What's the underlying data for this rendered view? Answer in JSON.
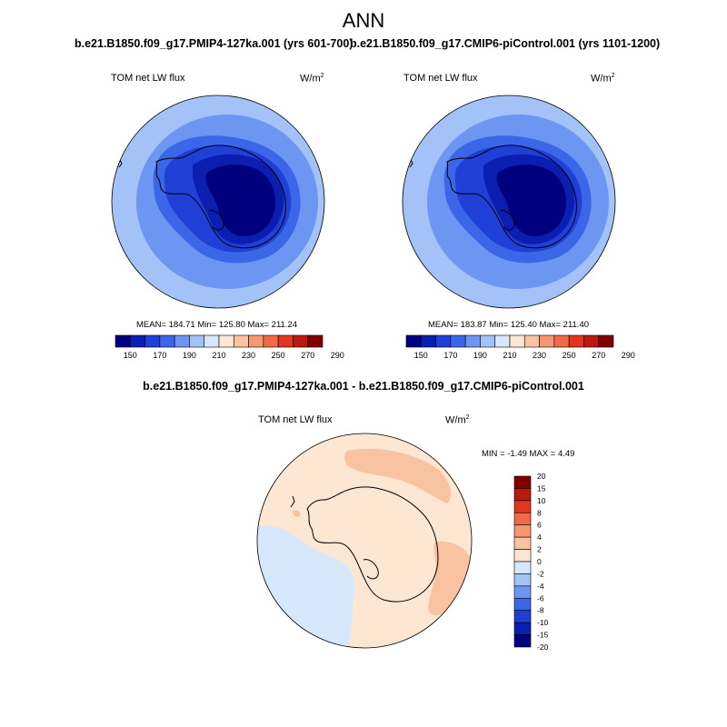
{
  "title": "ANN",
  "panels": [
    {
      "case": "b.e21.B1850.f09_g17.PMIP4-127ka.001 (yrs 601-700)",
      "variable": "TOM net LW flux",
      "units_base": "W/m",
      "units_exp": "2",
      "mean": "184.71",
      "min": "125.80",
      "max": "211.24",
      "stats_text": "MEAN= 184.71  Min= 125.80  Max= 211.24"
    },
    {
      "case": "b.e21.B1850.f09_g17.CMIP6-piControl.001 (yrs 1101-1200)",
      "variable": "TOM net LW flux",
      "units_base": "W/m",
      "units_exp": "2",
      "mean": "183.87",
      "min": "125.40",
      "max": "211.40",
      "stats_text": "MEAN= 183.87  Min= 125.40  Max= 211.40"
    }
  ],
  "diff": {
    "title": "b.e21.B1850.f09_g17.PMIP4-127ka.001 - b.e21.B1850.f09_g17.CMIP6-piControl.001",
    "variable": "TOM net LW flux",
    "units_base": "W/m",
    "units_exp": "2",
    "min": "-1.49",
    "max": "4.49",
    "stats_text": "MIN =  -1.49 MAX =   4.49"
  },
  "colorbar_main": {
    "colors": [
      "#00007f",
      "#0a1fb0",
      "#1f3fd6",
      "#3c66e8",
      "#6d95f2",
      "#a3c2f8",
      "#d8e8fc",
      "#fde6d2",
      "#f9c2a0",
      "#f6976f",
      "#f06a45",
      "#e0361f",
      "#b81a0d",
      "#800000"
    ],
    "labels": [
      "150",
      "170",
      "190",
      "210",
      "230",
      "250",
      "270",
      "290"
    ]
  },
  "colorbar_diff": {
    "colors": [
      "#800000",
      "#b81a0d",
      "#e0361f",
      "#f06a45",
      "#f6976f",
      "#f9c2a0",
      "#fde6d2",
      "#d8e8fc",
      "#a3c2f8",
      "#6d95f2",
      "#3c66e8",
      "#1f3fd6",
      "#0a1fb0",
      "#00007f"
    ],
    "labels": [
      "20",
      "15",
      "10",
      "8",
      "6",
      "4",
      "2",
      "0",
      "-2",
      "-4",
      "-6",
      "-8",
      "-10",
      "-15",
      "-20"
    ]
  },
  "field_colors": {
    "ring1": "#a3c2f8",
    "ring2": "#6d95f2",
    "ring3": "#3c66e8",
    "ring4": "#1f3fd6",
    "ring5": "#0a1fb0",
    "ring6": "#00007f",
    "diff_pos_weak": "#fde6d2",
    "diff_pos_med": "#f9c2a0",
    "diff_neg_weak": "#d8e8fc"
  }
}
